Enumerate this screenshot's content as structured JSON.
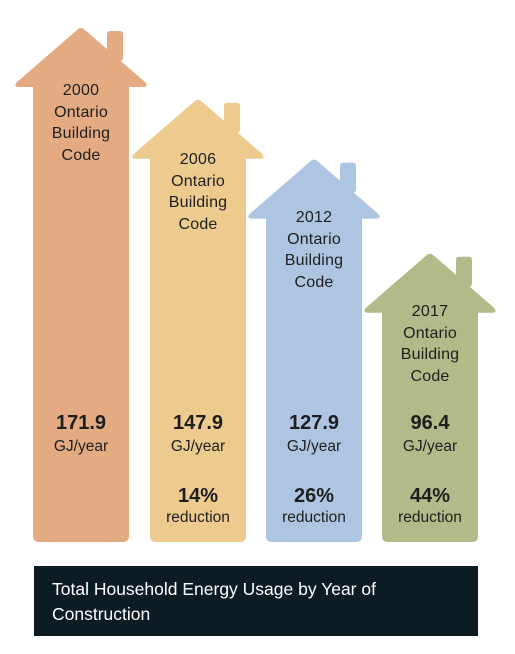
{
  "chart_data": {
    "type": "bar",
    "categories": [
      "2000 Ontario Building Code",
      "2006 Ontario Building Code",
      "2012 Ontario Building Code",
      "2017 Ontario Building Code"
    ],
    "values": [
      171.9,
      147.9,
      127.9,
      96.4
    ],
    "units": "GJ/year",
    "reductions": [
      "",
      "14%",
      "26%",
      "44%"
    ],
    "reduction_word": "reduction",
    "colors": [
      "#e4ab82",
      "#edcb8e",
      "#aec5e2",
      "#b2ba8a"
    ],
    "caption": "Total Household Energy Usage by Year of Construction",
    "houses": [
      {
        "year": "2000",
        "line1": "Ontario",
        "line2": "Building",
        "line3": "Code",
        "value": "171.9",
        "unit": "GJ/year",
        "pct": "",
        "reduction": ""
      },
      {
        "year": "2006",
        "line1": "Ontario",
        "line2": "Building",
        "line3": "Code",
        "value": "147.9",
        "unit": "GJ/year",
        "pct": "14%",
        "reduction": "reduction"
      },
      {
        "year": "2012",
        "line1": "Ontario",
        "line2": "Building",
        "line3": "Code",
        "value": "127.9",
        "unit": "GJ/year",
        "pct": "26%",
        "reduction": "reduction"
      },
      {
        "year": "2017",
        "line1": "Ontario",
        "line2": "Building",
        "line3": "Code",
        "value": "96.4",
        "unit": "GJ/year",
        "pct": "44%",
        "reduction": "reduction"
      }
    ]
  }
}
